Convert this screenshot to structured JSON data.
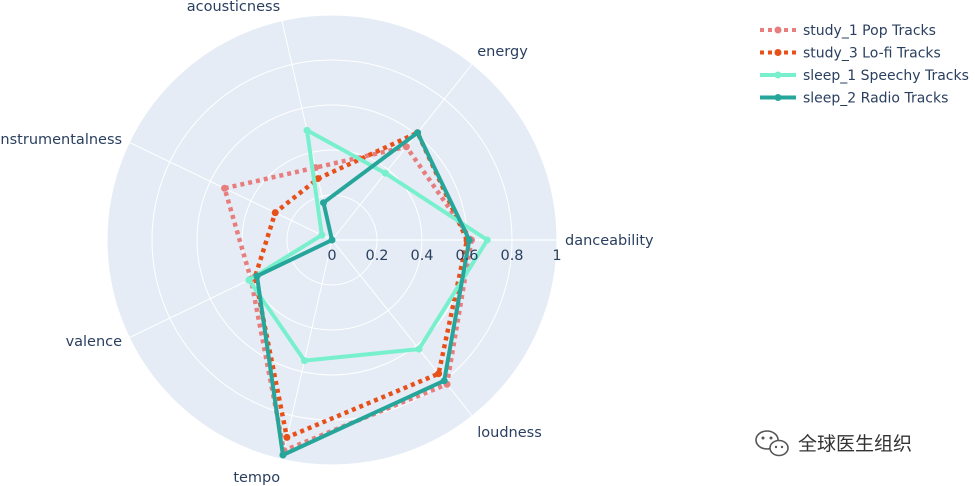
{
  "chart_data": {
    "type": "radar",
    "axes": [
      "danceability",
      "energy",
      "acousticness",
      "instrumentalness",
      "valence",
      "tempo",
      "loudness"
    ],
    "radial_ticks": [
      "0",
      "0.2",
      "0.4",
      "0.6",
      "0.8",
      "1"
    ],
    "radial_range": [
      0,
      1
    ],
    "grid": true,
    "legend_position": "top-right",
    "series": [
      {
        "name": "study_1 Pop Tracks",
        "values": [
          0.62,
          0.53,
          0.33,
          0.53,
          0.4,
          0.96,
          0.82
        ],
        "color": "#e87d7d",
        "dash": "dot"
      },
      {
        "name": "study_3 Lo-fi Tracks",
        "values": [
          0.6,
          0.61,
          0.28,
          0.28,
          0.38,
          0.9,
          0.76
        ],
        "color": "#e8501a",
        "dash": "dot"
      },
      {
        "name": "sleep_1 Speechy Tracks",
        "values": [
          0.69,
          0.38,
          0.5,
          0.05,
          0.41,
          0.55,
          0.62
        ],
        "color": "#79f0cd",
        "dash": "solid"
      },
      {
        "name": "sleep_2 Radio Tracks",
        "values": [
          0.61,
          0.61,
          0.17,
          0.0,
          0.37,
          0.98,
          0.8
        ],
        "color": "#26a69a",
        "dash": "solid"
      }
    ]
  },
  "watermark": {
    "text": "全球医生组织",
    "icon": "wechat-icon"
  },
  "colors": {
    "polar_bg": "#e5ecf6",
    "grid": "#ffffff",
    "text": "#2a3f5f"
  }
}
